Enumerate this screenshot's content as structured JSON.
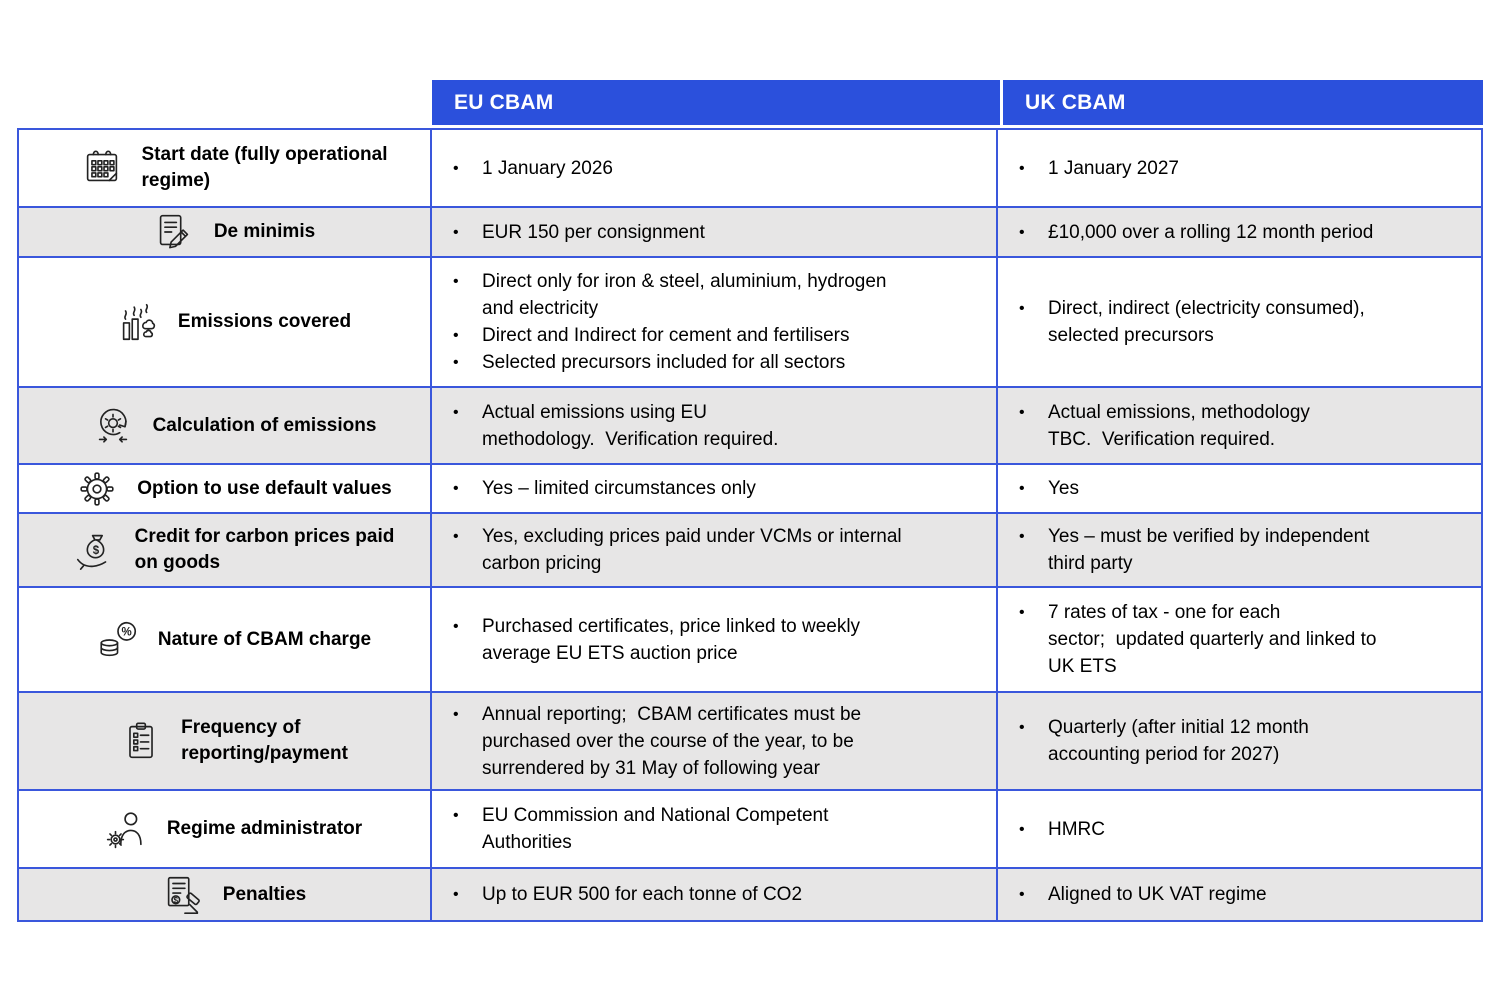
{
  "header": {
    "col_eu": "EU CBAM",
    "col_uk": "UK CBAM"
  },
  "colors": {
    "header_bg": "#2B50DC",
    "cell_border": "#3A57DC",
    "alt_row_bg": "#E7E6E6",
    "header_text": "#FFFFFF",
    "body_text": "#000000"
  },
  "rows": [
    {
      "icon": "calendar-icon",
      "label": "Start date (fully operational\nregime)",
      "eu": [
        "1 January 2026"
      ],
      "uk": [
        "1 January 2027"
      ]
    },
    {
      "icon": "document-pencil-icon",
      "label": "De minimis",
      "eu": [
        "EUR 150 per consignment"
      ],
      "uk": [
        "£10,000 over a rolling 12 month period"
      ]
    },
    {
      "icon": "factory-emissions-icon",
      "label": "Emissions covered",
      "eu": [
        "Direct only for iron & steel, aluminium, hydrogen\nand electricity",
        "Direct and Indirect for cement and fertilisers",
        "Selected precursors included for all sectors"
      ],
      "uk": [
        "Direct, indirect (electricity consumed),\nselected precursors"
      ]
    },
    {
      "icon": "calculation-cycle-icon",
      "label": "Calculation of emissions",
      "eu": [
        "Actual emissions using EU\nmethodology.  Verification required."
      ],
      "uk": [
        "Actual emissions, methodology\nTBC.  Verification required."
      ]
    },
    {
      "icon": "gear-icon",
      "label": "Option to use default values",
      "eu": [
        "Yes – limited circumstances only"
      ],
      "uk": [
        "Yes"
      ]
    },
    {
      "icon": "money-bag-hand-icon",
      "label": "Credit for carbon prices paid\non goods",
      "eu": [
        "Yes, excluding prices paid under VCMs or internal\ncarbon pricing"
      ],
      "uk": [
        "Yes – must be verified by independent\nthird party"
      ]
    },
    {
      "icon": "coins-percent-icon",
      "label": "Nature of CBAM charge",
      "eu": [
        "Purchased certificates, price linked to weekly\naverage EU ETS auction price"
      ],
      "uk": [
        "7 rates of tax - one for each\nsector;  updated quarterly and linked to\nUK ETS"
      ]
    },
    {
      "icon": "clipboard-checklist-icon",
      "label": "Frequency of\nreporting/payment",
      "eu": [
        "Annual reporting;  CBAM certificates must be\npurchased over the course of the year, to be\nsurrendered by 31 May of following year"
      ],
      "uk": [
        "Quarterly (after initial 12 month\naccounting period for 2027)"
      ]
    },
    {
      "icon": "person-gear-icon",
      "label": "Regime administrator",
      "eu": [
        "EU Commission and National Competent\nAuthorities"
      ],
      "uk": [
        "HMRC"
      ]
    },
    {
      "icon": "document-gavel-icon",
      "label": "Penalties",
      "eu": [
        "Up to EUR 500 for each tonne of CO2"
      ],
      "uk": [
        "Aligned to UK VAT regime"
      ]
    }
  ]
}
